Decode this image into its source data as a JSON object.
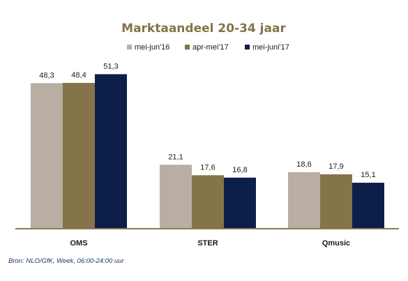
{
  "chart_data": {
    "type": "bar",
    "title": "Marktaandeel  20-34 jaar",
    "categories": [
      "OMS",
      "STER",
      "Qmusic"
    ],
    "series": [
      {
        "name": "mei-jun'16",
        "color": "#b8aea3",
        "values": [
          48.3,
          21.1,
          18.6
        ]
      },
      {
        "name": "apr-mei'17",
        "color": "#857349",
        "values": [
          48.4,
          17.6,
          17.9
        ]
      },
      {
        "name": "mei-juni'17",
        "color": "#0b1f4a",
        "values": [
          51.3,
          16.8,
          15.1
        ]
      }
    ],
    "value_labels": [
      [
        "48,3",
        "21,1",
        "18,6"
      ],
      [
        "48,4",
        "17,6",
        "17,9"
      ],
      [
        "51,3",
        "16,8",
        "15,1"
      ]
    ],
    "ylim": [
      0,
      60
    ],
    "xlabel": "",
    "ylabel": "",
    "grid": false,
    "legend_position": "top",
    "source": "Bron: NLO/GfK, Week, 06:00-24:00 uur",
    "colors": {
      "title": "#857349",
      "axis": "#8b7a52"
    }
  }
}
